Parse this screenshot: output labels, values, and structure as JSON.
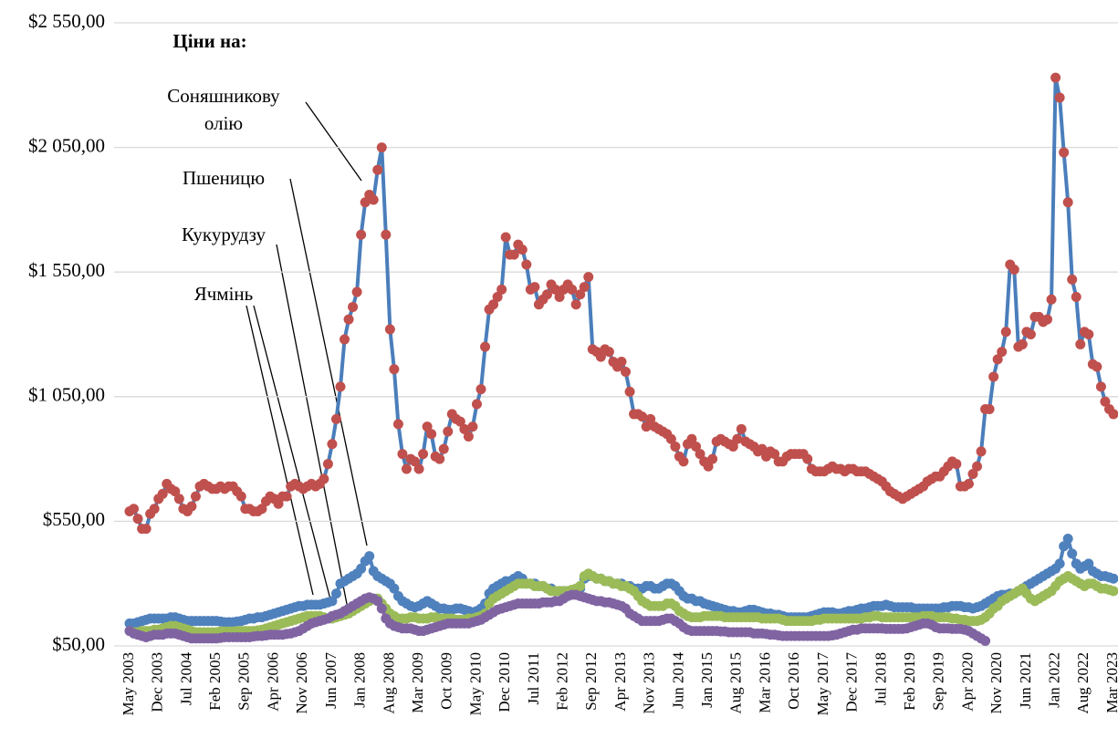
{
  "chart_data": {
    "type": "line",
    "annotation_title": "Ціни на:",
    "categories": [
      "May 2003",
      null,
      null,
      null,
      null,
      null,
      null,
      "Dec 2003",
      null,
      null,
      null,
      null,
      null,
      null,
      "Jul 2004",
      null,
      null,
      null,
      null,
      null,
      null,
      "Feb 2005",
      null,
      null,
      null,
      null,
      null,
      null,
      "Sep 2005",
      null,
      null,
      null,
      null,
      null,
      null,
      "Apr 2006",
      null,
      null,
      null,
      null,
      null,
      null,
      "Nov 2006",
      null,
      null,
      null,
      null,
      null,
      null,
      "Jun 2007",
      null,
      null,
      null,
      null,
      null,
      null,
      "Jan 2008",
      null,
      null,
      null,
      null,
      null,
      null,
      "Aug 2008",
      null,
      null,
      null,
      null,
      null,
      null,
      "Mar 2009",
      null,
      null,
      null,
      null,
      null,
      null,
      "Oct 2009",
      null,
      null,
      null,
      null,
      null,
      null,
      "May 2010",
      null,
      null,
      null,
      null,
      null,
      null,
      "Dec 2010",
      null,
      null,
      null,
      null,
      null,
      null,
      "Jul 2011",
      null,
      null,
      null,
      null,
      null,
      null,
      "Feb 2012",
      null,
      null,
      null,
      null,
      null,
      null,
      "Sep 2012",
      null,
      null,
      null,
      null,
      null,
      null,
      "Apr 2013",
      null,
      null,
      null,
      null,
      null,
      null,
      "Nov 2013",
      null,
      null,
      null,
      null,
      null,
      null,
      "Jun 2014",
      null,
      null,
      null,
      null,
      null,
      null,
      "Jan 2015",
      null,
      null,
      null,
      null,
      null,
      null,
      "Aug 2015",
      null,
      null,
      null,
      null,
      null,
      null,
      "Mar 2016",
      null,
      null,
      null,
      null,
      null,
      null,
      "Oct 2016",
      null,
      null,
      null,
      null,
      null,
      null,
      "May 2017",
      null,
      null,
      null,
      null,
      null,
      null,
      "Dec 2017",
      null,
      null,
      null,
      null,
      null,
      null,
      "Jul 2018",
      null,
      null,
      null,
      null,
      null,
      null,
      "Feb 2019",
      null,
      null,
      null,
      null,
      null,
      null,
      "Sep 2019",
      null,
      null,
      null,
      null,
      null,
      null,
      "Apr 2020",
      null,
      null,
      null,
      null,
      null,
      null,
      "Nov 2020",
      null,
      null,
      null,
      null,
      null,
      null,
      "Jun 2021",
      null,
      null,
      null,
      null,
      null,
      null,
      "Jan 2022",
      null,
      null,
      null,
      null,
      null,
      null,
      "Aug 2022",
      null,
      null,
      null,
      null,
      null,
      null,
      "Mar 2023"
    ],
    "series": [
      {
        "name": "Пшеницю",
        "color": "#4f81bd",
        "marker_color": "#4f81bd",
        "values": [
          140,
          140,
          145,
          150,
          155,
          160,
          160,
          160,
          160,
          160,
          165,
          165,
          160,
          155,
          150,
          150,
          150,
          150,
          150,
          150,
          150,
          150,
          148,
          145,
          145,
          145,
          148,
          150,
          155,
          160,
          160,
          165,
          165,
          170,
          175,
          180,
          185,
          190,
          195,
          200,
          205,
          210,
          210,
          215,
          215,
          215,
          215,
          220,
          225,
          230,
          260,
          300,
          310,
          320,
          330,
          340,
          360,
          390,
          410,
          350,
          330,
          320,
          310,
          300,
          280,
          250,
          230,
          220,
          210,
          205,
          210,
          220,
          230,
          220,
          210,
          200,
          200,
          195,
          195,
          200,
          200,
          195,
          190,
          185,
          190,
          200,
          220,
          260,
          280,
          290,
          300,
          310,
          310,
          320,
          330,
          320,
          300,
          300,
          300,
          290,
          290,
          280,
          280,
          270,
          270,
          270,
          270,
          270,
          270,
          280,
          320,
          330,
          330,
          320,
          320,
          310,
          310,
          300,
          300,
          300,
          290,
          290,
          280,
          280,
          280,
          290,
          290,
          280,
          280,
          290,
          300,
          300,
          290,
          270,
          250,
          240,
          240,
          230,
          230,
          220,
          215,
          210,
          205,
          200,
          195,
          190,
          190,
          185,
          185,
          190,
          195,
          195,
          190,
          185,
          180,
          180,
          175,
          175,
          170,
          165,
          165,
          165,
          165,
          165,
          165,
          170,
          175,
          180,
          185,
          185,
          185,
          180,
          180,
          185,
          190,
          190,
          195,
          200,
          200,
          205,
          210,
          210,
          210,
          215,
          210,
          205,
          205,
          205,
          205,
          205,
          200,
          200,
          200,
          200,
          200,
          200,
          200,
          205,
          205,
          210,
          210,
          210,
          205,
          205,
          200,
          205,
          210,
          220,
          230,
          240,
          250,
          255,
          255,
          260,
          260,
          270,
          280,
          290,
          300,
          310,
          320,
          330,
          340,
          350,
          360,
          380,
          450,
          480,
          420,
          380,
          360,
          370,
          380,
          350,
          340,
          330,
          330,
          325,
          320
        ]
      },
      {
        "name": "Кукурудзу",
        "color": "#9bbb59",
        "marker_color": "#9bbb59",
        "values": [
          110,
          105,
          105,
          110,
          110,
          110,
          115,
          115,
          120,
          125,
          130,
          130,
          125,
          120,
          115,
          110,
          105,
          105,
          105,
          105,
          105,
          105,
          108,
          108,
          108,
          108,
          110,
          110,
          110,
          110,
          110,
          112,
          115,
          120,
          125,
          130,
          135,
          140,
          145,
          150,
          155,
          160,
          165,
          170,
          170,
          170,
          170,
          165,
          160,
          160,
          165,
          170,
          175,
          180,
          190,
          200,
          210,
          220,
          230,
          240,
          240,
          220,
          200,
          180,
          170,
          160,
          160,
          160,
          165,
          165,
          160,
          160,
          160,
          165,
          165,
          160,
          160,
          160,
          160,
          155,
          155,
          155,
          160,
          160,
          165,
          170,
          180,
          220,
          240,
          250,
          260,
          270,
          280,
          290,
          300,
          300,
          300,
          300,
          290,
          290,
          290,
          280,
          270,
          270,
          270,
          270,
          270,
          275,
          280,
          290,
          330,
          340,
          330,
          320,
          320,
          310,
          310,
          300,
          300,
          290,
          290,
          280,
          270,
          250,
          230,
          220,
          210,
          210,
          210,
          210,
          220,
          220,
          210,
          190,
          180,
          170,
          165,
          165,
          165,
          170,
          170,
          170,
          170,
          170,
          165,
          165,
          165,
          165,
          165,
          165,
          165,
          165,
          165,
          160,
          160,
          160,
          160,
          160,
          155,
          150,
          150,
          150,
          150,
          150,
          150,
          150,
          155,
          155,
          160,
          160,
          160,
          160,
          160,
          160,
          160,
          160,
          160,
          160,
          165,
          165,
          170,
          170,
          165,
          165,
          165,
          165,
          165,
          165,
          165,
          165,
          165,
          165,
          170,
          170,
          170,
          165,
          165,
          165,
          165,
          160,
          160,
          155,
          155,
          150,
          150,
          150,
          155,
          165,
          180,
          200,
          210,
          230,
          240,
          250,
          260,
          270,
          280,
          260,
          240,
          230,
          240,
          250,
          260,
          270,
          290,
          310,
          320,
          330,
          320,
          310,
          300,
          290,
          300,
          300,
          290,
          280,
          280,
          275,
          270
        ]
      },
      {
        "name": "Ячмінь",
        "color": "#8064a2",
        "marker_color": "#8064a2",
        "values": [
          110,
          100,
          95,
          90,
          85,
          90,
          95,
          95,
          95,
          100,
          100,
          100,
          95,
          90,
          85,
          80,
          80,
          80,
          80,
          80,
          80,
          80,
          82,
          85,
          85,
          85,
          85,
          85,
          85,
          85,
          88,
          90,
          90,
          92,
          95,
          95,
          95,
          95,
          98,
          100,
          105,
          110,
          120,
          130,
          140,
          145,
          150,
          155,
          160,
          170,
          175,
          180,
          190,
          200,
          210,
          220,
          230,
          240,
          245,
          240,
          230,
          200,
          160,
          140,
          130,
          125,
          120,
          120,
          120,
          115,
          110,
          110,
          115,
          120,
          125,
          130,
          135,
          140,
          140,
          140,
          140,
          140,
          140,
          145,
          150,
          155,
          165,
          175,
          185,
          195,
          200,
          205,
          210,
          215,
          220,
          220,
          220,
          220,
          220,
          220,
          225,
          225,
          225,
          230,
          230,
          240,
          250,
          255,
          255,
          250,
          245,
          240,
          235,
          230,
          230,
          225,
          225,
          220,
          215,
          210,
          200,
          180,
          170,
          160,
          150,
          150,
          150,
          150,
          150,
          155,
          160,
          160,
          150,
          140,
          125,
          115,
          110,
          110,
          110,
          110,
          110,
          110,
          110,
          108,
          108,
          105,
          105,
          105,
          105,
          105,
          105,
          100,
          100,
          100,
          98,
          95,
          95,
          92,
          90,
          90,
          90,
          90,
          90,
          90,
          90,
          90,
          90,
          90,
          90,
          90,
          92,
          95,
          100,
          105,
          110,
          115,
          115,
          120,
          120,
          120,
          120,
          120,
          120,
          118,
          118,
          118,
          118,
          118,
          120,
          125,
          130,
          135,
          140,
          140,
          135,
          125,
          120,
          120,
          120,
          118,
          118,
          118,
          115,
          110,
          100,
          90,
          80,
          70,
          null,
          null,
          null,
          null,
          null,
          null,
          null,
          null,
          null,
          null,
          null,
          null,
          null,
          null,
          null,
          null,
          null,
          null,
          null,
          null,
          null,
          null,
          null,
          null,
          null,
          null,
          null,
          null,
          null,
          null,
          null
        ]
      },
      {
        "name": "Соняшникову олію",
        "color": "#4a7ebb",
        "marker_color": "#c0504d",
        "values": [
          590,
          600,
          560,
          520,
          520,
          580,
          600,
          640,
          660,
          700,
          680,
          670,
          640,
          600,
          590,
          610,
          650,
          690,
          700,
          690,
          680,
          680,
          690,
          680,
          690,
          690,
          670,
          650,
          600,
          600,
          590,
          590,
          600,
          630,
          650,
          640,
          620,
          650,
          650,
          690,
          700,
          690,
          680,
          690,
          700,
          690,
          700,
          720,
          780,
          860,
          960,
          1090,
          1280,
          1360,
          1410,
          1470,
          1700,
          1830,
          1860,
          1840,
          1960,
          2050,
          1700,
          1320,
          1160,
          940,
          820,
          760,
          800,
          790,
          760,
          820,
          930,
          900,
          810,
          800,
          840,
          910,
          980,
          960,
          950,
          920,
          890,
          930,
          1020,
          1080,
          1250,
          1400,
          1420,
          1450,
          1480,
          1690,
          1620,
          1620,
          1660,
          1640,
          1580,
          1480,
          1490,
          1420,
          1440,
          1460,
          1500,
          1480,
          1450,
          1480,
          1500,
          1480,
          1420,
          1460,
          1490,
          1530,
          1240,
          1230,
          1210,
          1240,
          1230,
          1190,
          1170,
          1190,
          1150,
          1070,
          980,
          980,
          970,
          930,
          960,
          930,
          920,
          910,
          900,
          880,
          850,
          810,
          790,
          860,
          880,
          850,
          820,
          790,
          770,
          800,
          870,
          880,
          870,
          860,
          850,
          880,
          920,
          870,
          860,
          850,
          830,
          840,
          810,
          830,
          820,
          790,
          790,
          810,
          820,
          820,
          820,
          820,
          800,
          760,
          750,
          750,
          750,
          760,
          770,
          760,
          760,
          750,
          760,
          760,
          750,
          750,
          750,
          740,
          730,
          720,
          710,
          690,
          670,
          660,
          650,
          640,
          650,
          660,
          670,
          680,
          690,
          710,
          720,
          730,
          730,
          750,
          770,
          790,
          780,
          690,
          690,
          700,
          740,
          770,
          830,
          1000,
          1000,
          1130,
          1200,
          1230,
          1310,
          1580,
          1560,
          1250,
          1260,
          1310,
          1300,
          1370,
          1370,
          1350,
          1360,
          1440,
          2330,
          2250,
          2030,
          1830,
          1520,
          1450,
          1260,
          1310,
          1300,
          1180,
          1170,
          1090,
          1030,
          1000,
          980
        ]
      }
    ],
    "ylim": [
      50,
      2550
    ],
    "yticks": [
      {
        "value": 50,
        "label": "$50,00"
      },
      {
        "value": 550,
        "label": "$550,00"
      },
      {
        "value": 1050,
        "label": "$1 050,00"
      },
      {
        "value": 1550,
        "label": "$1 550,00"
      },
      {
        "value": 2050,
        "label": "$2 050,00"
      },
      {
        "value": 2550,
        "label": "$2 550,00"
      }
    ],
    "grid": true
  }
}
